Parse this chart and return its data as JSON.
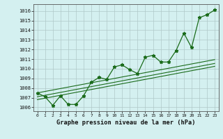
{
  "x": [
    0,
    1,
    2,
    3,
    4,
    5,
    6,
    7,
    8,
    9,
    10,
    11,
    12,
    13,
    14,
    15,
    16,
    17,
    18,
    19,
    20,
    21,
    22,
    23
  ],
  "y": [
    1007.5,
    1007.1,
    1006.2,
    1007.2,
    1006.3,
    1006.3,
    1007.2,
    1008.6,
    1009.1,
    1008.9,
    1010.2,
    1010.4,
    1009.9,
    1009.5,
    1011.2,
    1011.4,
    1010.7,
    1010.7,
    1011.9,
    1013.7,
    1012.2,
    1015.3,
    1015.6,
    1016.1
  ],
  "trend_lo": [
    1006.8,
    1006.95,
    1007.1,
    1007.25,
    1007.4,
    1007.55,
    1007.7,
    1007.85,
    1008.0,
    1008.15,
    1008.3,
    1008.45,
    1008.6,
    1008.75,
    1008.9,
    1009.05,
    1009.2,
    1009.35,
    1009.5,
    1009.65,
    1009.8,
    1009.95,
    1010.1,
    1010.25
  ],
  "trend_hi": [
    1007.5,
    1007.65,
    1007.8,
    1007.95,
    1008.1,
    1008.25,
    1008.4,
    1008.55,
    1008.7,
    1008.85,
    1009.0,
    1009.15,
    1009.3,
    1009.45,
    1009.6,
    1009.75,
    1009.9,
    1010.05,
    1010.2,
    1010.35,
    1010.5,
    1010.65,
    1010.8,
    1010.95
  ],
  "trend_mid": [
    1007.1,
    1007.25,
    1007.4,
    1007.55,
    1007.7,
    1007.85,
    1008.0,
    1008.15,
    1008.3,
    1008.45,
    1008.6,
    1008.75,
    1008.9,
    1009.05,
    1009.2,
    1009.35,
    1009.5,
    1009.65,
    1009.8,
    1009.95,
    1010.1,
    1010.25,
    1010.4,
    1010.55
  ],
  "line_color": "#1a6b1a",
  "bg_color": "#d4f0f0",
  "grid_color": "#b0c8c8",
  "ylabel_ticks": [
    1006,
    1007,
    1008,
    1009,
    1010,
    1011,
    1012,
    1013,
    1014,
    1015,
    1016
  ],
  "xlabel": "Graphe pression niveau de la mer (hPa)",
  "ylim": [
    1005.6,
    1016.7
  ],
  "xlim": [
    -0.5,
    23.5
  ]
}
